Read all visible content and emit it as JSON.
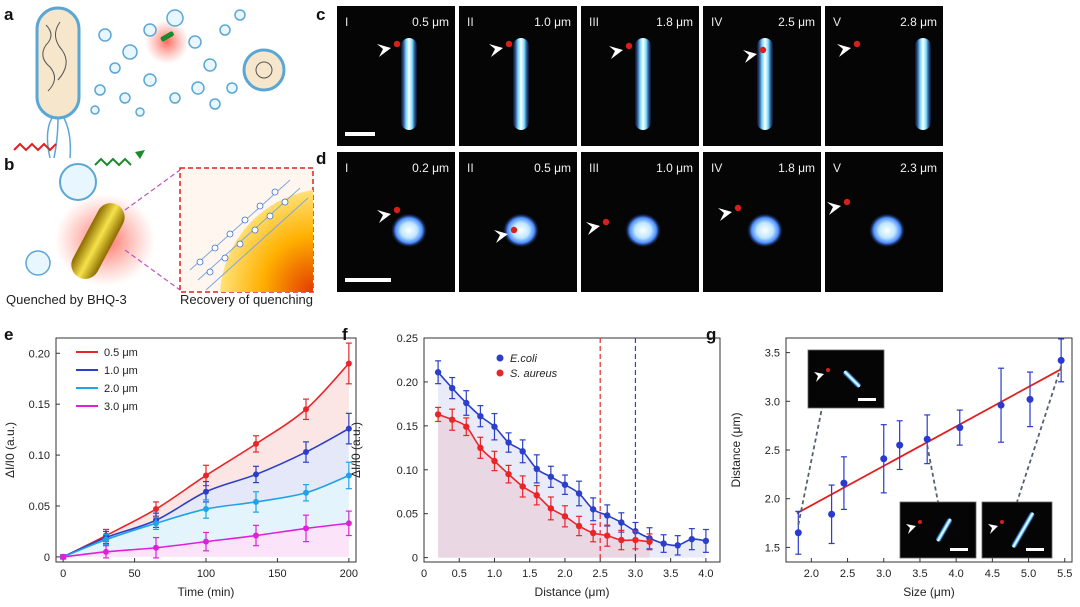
{
  "panel_labels": {
    "a": "a",
    "b": "b",
    "c": "c",
    "d": "d",
    "e": "e",
    "f": "f",
    "g": "g"
  },
  "schematic": {
    "quenched_label": "Quenched by BHQ-3",
    "recovery_label": "Recovery of quenching"
  },
  "micrographs": {
    "row_c": [
      {
        "numeral": "I",
        "size": "0.5 μm"
      },
      {
        "numeral": "II",
        "size": "1.0 μm"
      },
      {
        "numeral": "III",
        "size": "1.8 μm"
      },
      {
        "numeral": "IV",
        "size": "2.5 μm"
      },
      {
        "numeral": "V",
        "size": "2.8 μm"
      }
    ],
    "row_d": [
      {
        "numeral": "I",
        "size": "0.2 μm"
      },
      {
        "numeral": "II",
        "size": "0.5 μm"
      },
      {
        "numeral": "III",
        "size": "1.0 μm"
      },
      {
        "numeral": "IV",
        "size": "1.8 μm"
      },
      {
        "numeral": "V",
        "size": "2.3 μm"
      }
    ]
  },
  "colors": {
    "red": "#e8262a",
    "blue": "#2b3fc8",
    "lightblue": "#1ea3e6",
    "magenta": "#e020d8",
    "trend": "#e02020",
    "point": "#2a3ad0"
  },
  "chart_data": [
    {
      "panel": "e",
      "type": "line",
      "xlabel": "Time (min)",
      "ylabel": "ΔI/I0 (a.u.)",
      "xlim": [
        -5,
        205
      ],
      "ylim": [
        -0.005,
        0.215
      ],
      "xticks": [
        0,
        50,
        100,
        150,
        200
      ],
      "yticks": [
        0,
        0.05,
        0.1,
        0.15,
        0.2
      ],
      "ytick_labels": [
        "0",
        "0.05",
        "0.10",
        "0.15",
        "0.20"
      ],
      "x": [
        0,
        30,
        65,
        100,
        135,
        170,
        200
      ],
      "series": [
        {
          "name": "0.5 μm",
          "color": "#e8262a",
          "values": [
            0,
            0.021,
            0.047,
            0.08,
            0.111,
            0.145,
            0.19
          ],
          "err": [
            0.002,
            0.006,
            0.007,
            0.01,
            0.008,
            0.01,
            0.02
          ]
        },
        {
          "name": "1.0 μm",
          "color": "#2b3fc8",
          "values": [
            0,
            0.019,
            0.036,
            0.064,
            0.081,
            0.103,
            0.126
          ],
          "err": [
            0.002,
            0.006,
            0.007,
            0.01,
            0.008,
            0.01,
            0.015
          ]
        },
        {
          "name": "2.0 μm",
          "color": "#1ea3e6",
          "values": [
            0,
            0.017,
            0.033,
            0.047,
            0.054,
            0.063,
            0.08
          ],
          "err": [
            0.002,
            0.005,
            0.006,
            0.009,
            0.01,
            0.008,
            0.013
          ]
        },
        {
          "name": "3.0 μm",
          "color": "#e020d8",
          "values": [
            0,
            0.005,
            0.009,
            0.015,
            0.021,
            0.028,
            0.033
          ],
          "err": [
            0.002,
            0.006,
            0.01,
            0.009,
            0.01,
            0.013,
            0.012
          ]
        }
      ]
    },
    {
      "panel": "f",
      "type": "line",
      "xlabel": "Distance (μm)",
      "ylabel": "ΔI/I0 (a.u.)",
      "xlim": [
        0,
        4.2
      ],
      "ylim": [
        -0.005,
        0.25
      ],
      "xticks": [
        0,
        0.5,
        1.0,
        1.5,
        2.0,
        2.5,
        3.0,
        3.5,
        4.0
      ],
      "xtick_labels": [
        "0",
        "0.5",
        "1.0",
        "1.5",
        "2.0",
        "2.5",
        "3.0",
        "3.5",
        "4.0"
      ],
      "yticks": [
        0,
        0.05,
        0.1,
        0.15,
        0.2,
        0.25
      ],
      "ytick_labels": [
        "0",
        "0.05",
        "0.10",
        "0.15",
        "0.20",
        "0.25"
      ],
      "thresholds": [
        {
          "x": 2.5,
          "color": "#e8262a"
        },
        {
          "x": 3.0,
          "color": "#2b3fc8"
        }
      ],
      "series": [
        {
          "name": "E.coli",
          "color": "#2b3fc8",
          "x": [
            0.2,
            0.4,
            0.6,
            0.8,
            1.0,
            1.2,
            1.4,
            1.6,
            1.8,
            2.0,
            2.2,
            2.4,
            2.6,
            2.8,
            3.0,
            3.2,
            3.4,
            3.6,
            3.8,
            4.0
          ],
          "values": [
            0.211,
            0.193,
            0.176,
            0.161,
            0.149,
            0.131,
            0.121,
            0.101,
            0.092,
            0.083,
            0.073,
            0.055,
            0.048,
            0.04,
            0.03,
            0.022,
            0.016,
            0.014,
            0.021,
            0.019
          ],
          "err": [
            0.013,
            0.012,
            0.014,
            0.012,
            0.015,
            0.011,
            0.013,
            0.016,
            0.012,
            0.011,
            0.014,
            0.013,
            0.012,
            0.011,
            0.01,
            0.012,
            0.01,
            0.011,
            0.012,
            0.013
          ]
        },
        {
          "name": "S. aureus",
          "color": "#e8262a",
          "x": [
            0.2,
            0.4,
            0.6,
            0.8,
            1.0,
            1.2,
            1.4,
            1.6,
            1.8,
            2.0,
            2.2,
            2.4,
            2.6,
            2.8,
            3.0,
            3.2
          ],
          "values": [
            0.163,
            0.157,
            0.149,
            0.125,
            0.11,
            0.095,
            0.081,
            0.071,
            0.056,
            0.047,
            0.036,
            0.028,
            0.025,
            0.02,
            0.02,
            0.018
          ],
          "err": [
            0.008,
            0.012,
            0.01,
            0.012,
            0.011,
            0.01,
            0.012,
            0.011,
            0.013,
            0.012,
            0.011,
            0.01,
            0.012,
            0.011,
            0.01,
            0.009
          ]
        }
      ]
    },
    {
      "panel": "g",
      "type": "scatter",
      "xlabel": "Size (μm)",
      "ylabel": "Distance (μm)",
      "xlim": [
        1.65,
        5.6
      ],
      "ylim": [
        1.35,
        3.65
      ],
      "xticks": [
        2.0,
        2.5,
        3.0,
        3.5,
        4.0,
        4.5,
        5.0,
        5.5
      ],
      "xtick_labels": [
        "2.0",
        "2.5",
        "3.0",
        "3.5",
        "4.0",
        "4.5",
        "5.0",
        "5.5"
      ],
      "yticks": [
        1.5,
        2.0,
        2.5,
        3.0,
        3.5
      ],
      "ytick_labels": [
        "1.5",
        "2.0",
        "2.5",
        "3.0",
        "3.5"
      ],
      "x": [
        1.82,
        2.28,
        2.45,
        3.0,
        3.22,
        3.6,
        4.05,
        4.62,
        5.02,
        5.45
      ],
      "values": [
        1.65,
        1.84,
        2.16,
        2.41,
        2.55,
        2.61,
        2.73,
        2.96,
        3.02,
        3.42
      ],
      "err": [
        0.22,
        0.3,
        0.27,
        0.35,
        0.25,
        0.25,
        0.18,
        0.38,
        0.28,
        0.22
      ],
      "fit": {
        "x0": 1.8,
        "y0": 1.85,
        "x1": 5.45,
        "y1": 3.33,
        "color": "#e02020"
      }
    }
  ]
}
